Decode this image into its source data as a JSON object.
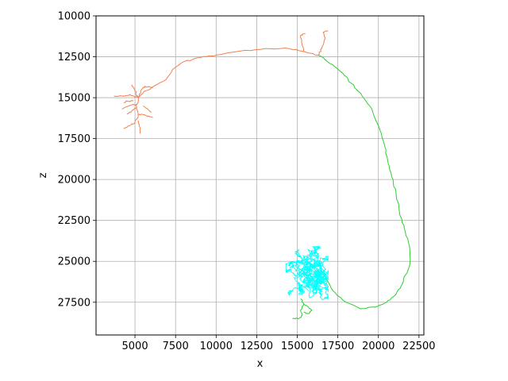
{
  "chart_data": {
    "type": "line",
    "title": "",
    "xlabel": "x",
    "ylabel": "z",
    "xlim": [
      2600,
      22800
    ],
    "ylim": [
      29500,
      10000
    ],
    "y_inverted": true,
    "grid": true,
    "x_ticks": [
      5000,
      7500,
      10000,
      12500,
      15000,
      17500,
      20000,
      22500
    ],
    "y_ticks": [
      10000,
      12500,
      15000,
      17500,
      20000,
      22500,
      25000,
      27500
    ],
    "x_tick_labels": [
      "5000",
      "7500",
      "10000",
      "12500",
      "15000",
      "17500",
      "20000",
      "22500"
    ],
    "y_tick_labels": [
      "10000",
      "12500",
      "15000",
      "17500",
      "20000",
      "22500",
      "25000",
      "27500"
    ],
    "series": [
      {
        "color": "#f08050",
        "paths": [
          [
            [
              16300,
              12400
            ],
            [
              15500,
              12200
            ],
            [
              14500,
              12000
            ],
            [
              13000,
              12000
            ],
            [
              11500,
              12150
            ],
            [
              10000,
              12400
            ],
            [
              9000,
              12550
            ],
            [
              8000,
              12800
            ],
            [
              7300,
              13300
            ],
            [
              6900,
              13900
            ],
            [
              6000,
              14400
            ],
            [
              5500,
              14700
            ],
            [
              5200,
              15000
            ],
            [
              5100,
              15600
            ],
            [
              5200,
              16100
            ]
          ],
          [
            [
              5200,
              15000
            ],
            [
              4700,
              14800
            ],
            [
              4200,
              14900
            ],
            [
              3700,
              14900
            ]
          ],
          [
            [
              5200,
              15000
            ],
            [
              5000,
              14600
            ],
            [
              4800,
              14200
            ]
          ],
          [
            [
              5200,
              15000
            ],
            [
              5400,
              14500
            ],
            [
              5600,
              14300
            ],
            [
              6100,
              14400
            ]
          ],
          [
            [
              5100,
              15400
            ],
            [
              4600,
              15500
            ],
            [
              4200,
              15700
            ]
          ],
          [
            [
              5100,
              15600
            ],
            [
              4800,
              15800
            ],
            [
              4500,
              16000
            ]
          ],
          [
            [
              5200,
              16000
            ],
            [
              5700,
              16100
            ],
            [
              6100,
              16200
            ]
          ],
          [
            [
              5200,
              16100
            ],
            [
              5000,
              16500
            ],
            [
              4700,
              16700
            ],
            [
              4300,
              16900
            ]
          ],
          [
            [
              5200,
              16400
            ],
            [
              5300,
              16800
            ],
            [
              5300,
              17200
            ]
          ],
          [
            [
              5500,
              15500
            ],
            [
              5800,
              15700
            ],
            [
              6000,
              15900
            ]
          ],
          [
            [
              4900,
              15200
            ],
            [
              4500,
              15200
            ],
            [
              4300,
              15300
            ]
          ],
          [
            [
              15400,
              12200
            ],
            [
              15300,
              11800
            ],
            [
              15200,
              11200
            ],
            [
              15500,
              11100
            ]
          ],
          [
            [
              16300,
              12400
            ],
            [
              16500,
              12000
            ],
            [
              16700,
              11400
            ],
            [
              16600,
              11000
            ],
            [
              16900,
              10900
            ]
          ]
        ]
      },
      {
        "color": "#33cc33",
        "paths": [
          [
            [
              16300,
              12400
            ],
            [
              17000,
              12900
            ],
            [
              17800,
              13500
            ],
            [
              18300,
              14100
            ],
            [
              19000,
              14900
            ],
            [
              19600,
              15700
            ],
            [
              20100,
              17000
            ],
            [
              20400,
              18000
            ],
            [
              20600,
              19000
            ],
            [
              20900,
              20000
            ],
            [
              21100,
              21000
            ],
            [
              21300,
              22000
            ],
            [
              21600,
              23000
            ],
            [
              21900,
              24000
            ],
            [
              21950,
              25100
            ],
            [
              21700,
              25800
            ],
            [
              21400,
              26500
            ],
            [
              21000,
              27100
            ],
            [
              20500,
              27500
            ],
            [
              19800,
              27800
            ],
            [
              18900,
              27900
            ],
            [
              18000,
              27500
            ],
            [
              17200,
              26800
            ],
            [
              16800,
              26100
            ],
            [
              16600,
              25800
            ]
          ],
          [
            [
              15200,
              27300
            ],
            [
              15400,
              27600
            ],
            [
              15200,
              28000
            ],
            [
              15300,
              28300
            ],
            [
              15100,
              28500
            ],
            [
              14700,
              28500
            ]
          ],
          [
            [
              15400,
              27600
            ],
            [
              15700,
              27800
            ],
            [
              15900,
              28000
            ],
            [
              15700,
              28200
            ],
            [
              15400,
              28100
            ]
          ]
        ]
      },
      {
        "color": "#00ffff",
        "cluster": {
          "x_range": [
            14300,
            16900
          ],
          "z_range": [
            24100,
            27600
          ],
          "center": [
            15800,
            25700
          ]
        }
      }
    ]
  }
}
